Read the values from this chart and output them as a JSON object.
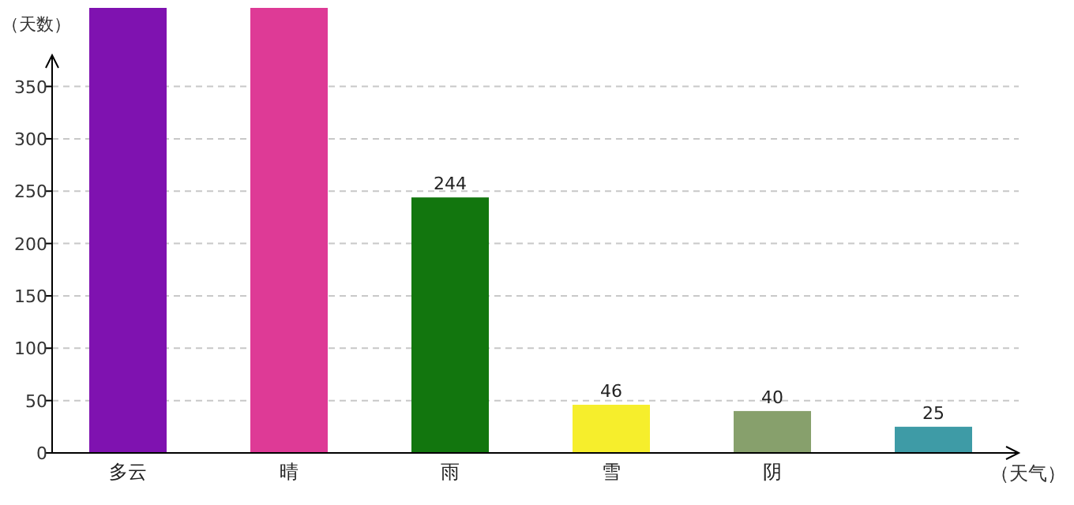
{
  "chart_data": {
    "type": "bar",
    "ylabel": "（天数）",
    "xlabel": "（天气）",
    "categories": [
      "多云",
      "晴",
      "雨",
      "雪",
      "阴",
      null
    ],
    "values": [
      425,
      425,
      244,
      46,
      40,
      25
    ],
    "colors": [
      "#7f12b0",
      "#de3a96",
      "#12760e",
      "#f6ee2c",
      "#87a06c",
      "#3e9ba6"
    ],
    "value_labels": [
      null,
      null,
      "244",
      "46",
      "40",
      "25"
    ],
    "ylim": [
      0,
      425
    ],
    "yticks": [
      0,
      50,
      100,
      150,
      200,
      250,
      300,
      350
    ],
    "grid": "y"
  }
}
